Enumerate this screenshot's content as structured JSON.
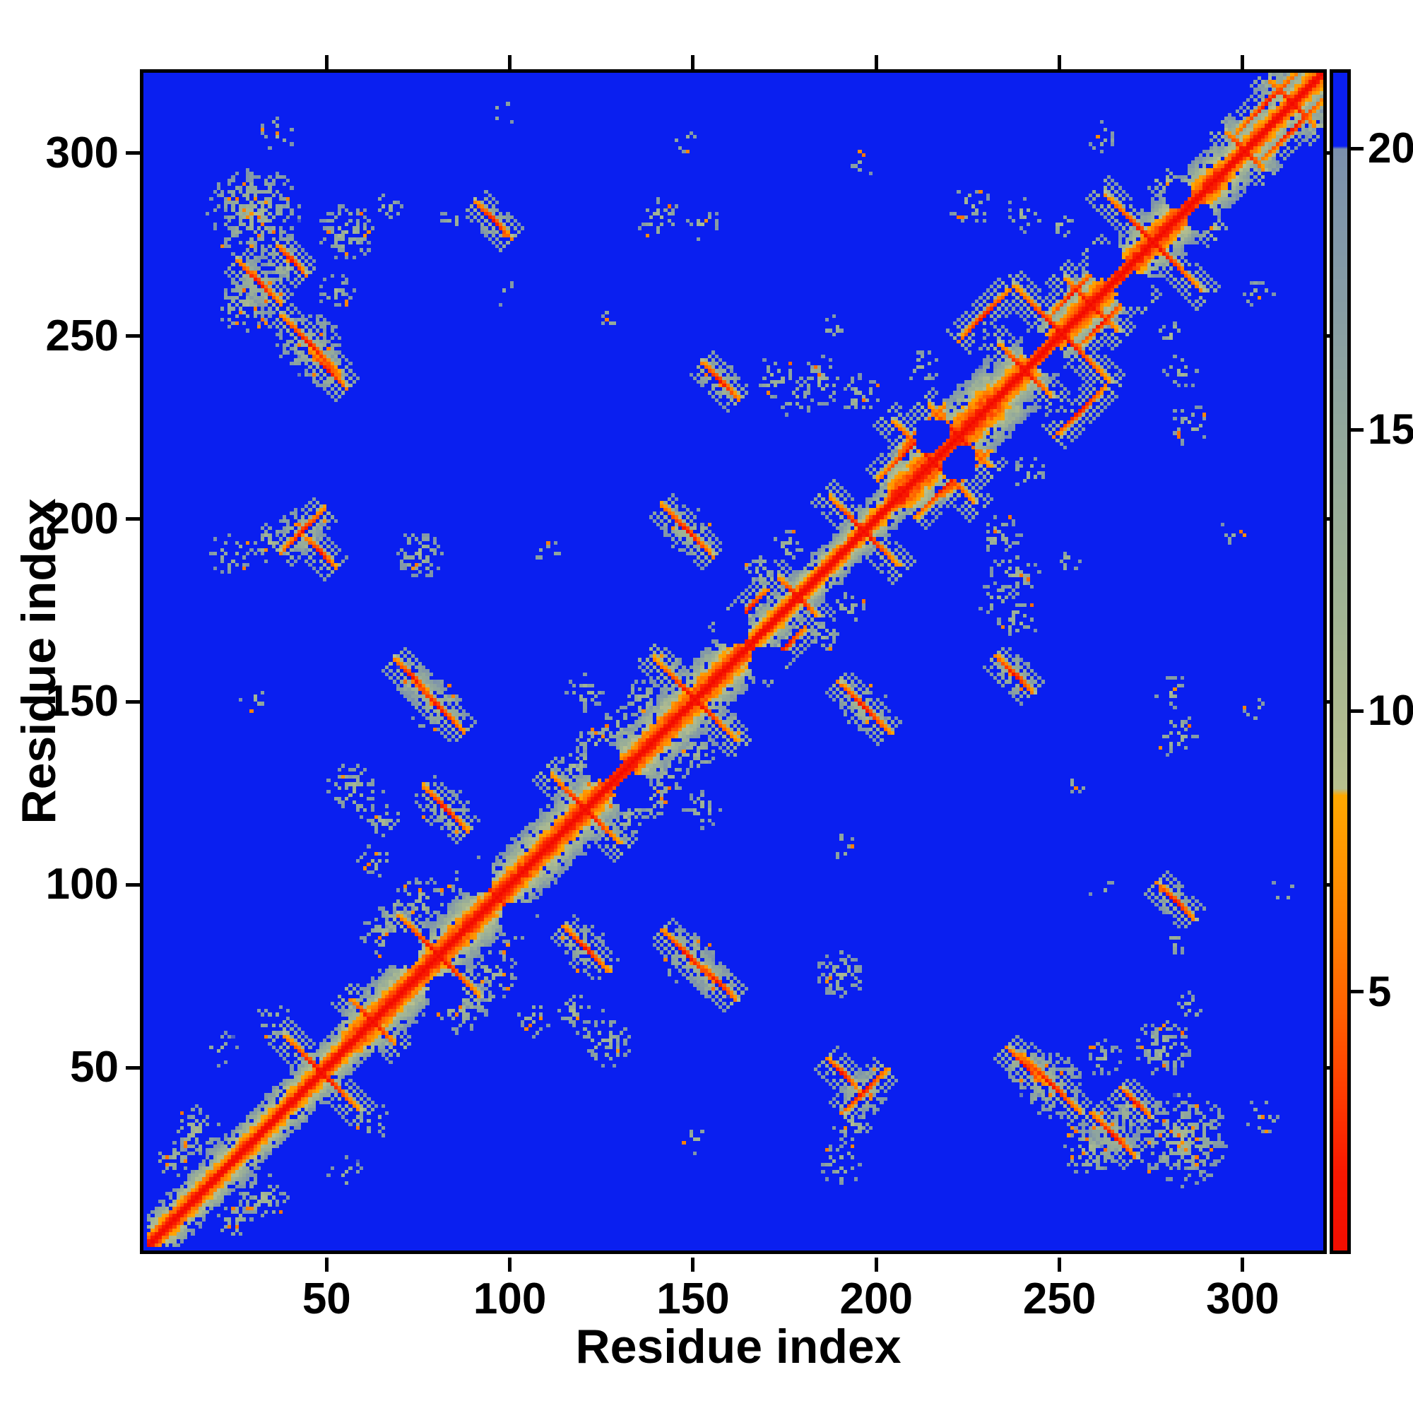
{
  "chart_data": {
    "type": "heatmap",
    "title": "",
    "xlabel": "Residue index",
    "ylabel": "Residue index",
    "x_range": [
      1,
      322
    ],
    "y_range": [
      1,
      322
    ],
    "x_ticks": [
      50,
      100,
      150,
      200,
      250,
      300
    ],
    "y_ticks": [
      50,
      100,
      150,
      200,
      250,
      300
    ],
    "grid": false,
    "n": 322,
    "seed": 42,
    "background_color": "#0a1ff0",
    "palette_stops": [
      [
        0,
        "#f20a00"
      ],
      [
        1.8,
        "#f81800"
      ],
      [
        3.2,
        "#ff3c00"
      ],
      [
        4.6,
        "#ff5f00"
      ],
      [
        6,
        "#ff7e00"
      ],
      [
        7.2,
        "#ff9300"
      ],
      [
        8.5,
        "#ffa800"
      ],
      [
        8.62,
        "#b8c08e"
      ],
      [
        12,
        "#a0b394"
      ],
      [
        15,
        "#92a89c"
      ],
      [
        18,
        "#8399a7"
      ],
      [
        20,
        "#7b90ad"
      ],
      [
        20.05,
        "#0a1ff0"
      ],
      [
        40,
        "#0a1ff0"
      ]
    ],
    "colorbar": {
      "orientation": "vertical",
      "position": "right",
      "ticks": [
        5,
        10,
        15,
        20
      ],
      "vmin": 0.4,
      "vmax": 21.35
    },
    "description": "Symmetric residue-residue distance map: red = short distance (main diagonal), orange = close contacts, gray-green = intermediate, blue = beyond ~20.",
    "features": {
      "bands": [
        [
          1,
          54,
          7
        ],
        [
          54,
          102,
          9
        ],
        [
          102,
          162,
          9
        ],
        [
          162,
          203,
          6
        ],
        [
          203,
          230,
          11
        ],
        [
          230,
          252,
          8
        ],
        [
          252,
          292,
          9
        ],
        [
          292,
          321,
          7
        ]
      ],
      "crosses": [
        [
          48,
          10
        ],
        [
          62,
          6
        ],
        [
          80,
          11
        ],
        [
          96,
          6
        ],
        [
          120,
          9
        ],
        [
          128,
          5
        ],
        [
          150,
          11
        ],
        [
          165,
          6
        ],
        [
          178,
          5
        ],
        [
          196,
          9
        ],
        [
          215,
          11
        ],
        [
          222,
          8
        ],
        [
          240,
          7
        ],
        [
          250,
          13
        ],
        [
          258,
          7
        ],
        [
          266,
          6
        ],
        [
          275,
          13
        ],
        [
          285,
          6
        ],
        [
          300,
          5
        ],
        [
          313,
          6
        ]
      ],
      "antis": [
        [
          31,
          264,
          6
        ],
        [
          45,
          247,
          8
        ],
        [
          80,
          148,
          7
        ],
        [
          82,
          120,
          6
        ],
        [
          73,
          156,
          5
        ],
        [
          148,
          196,
          7
        ],
        [
          157,
          237,
          5
        ],
        [
          50,
          240,
          5
        ],
        [
          40,
          270,
          4
        ],
        [
          95,
          281,
          5
        ],
        [
          48,
          190,
          4
        ]
      ],
      "paras": [
        [
          209,
          219,
          9
        ],
        [
          212,
          224,
          6
        ],
        [
          306,
          313,
          8
        ],
        [
          253,
          261,
          6
        ],
        [
          43,
          196,
          6
        ],
        [
          229,
          255,
          7
        ],
        [
          165,
          175,
          5
        ]
      ],
      "blobs": [
        [
          30,
          283,
          13,
          0.7
        ],
        [
          55,
          278,
          8,
          0.55
        ],
        [
          27,
          258,
          8,
          0.6
        ],
        [
          45,
          247,
          9,
          0.65
        ],
        [
          31,
          264,
          7,
          0.6
        ],
        [
          50,
          240,
          6,
          0.55
        ],
        [
          38,
          268,
          6,
          0.5
        ],
        [
          52,
          262,
          5,
          0.45
        ],
        [
          66,
          285,
          4,
          0.4
        ],
        [
          84,
          281,
          4,
          0.35
        ],
        [
          140,
          282,
          6,
          0.4
        ],
        [
          152,
          280,
          5,
          0.35
        ],
        [
          128,
          255,
          4,
          0.3
        ],
        [
          97,
          262,
          4,
          0.3
        ],
        [
          95,
          281,
          5,
          0.35
        ],
        [
          23,
          190,
          6,
          0.45
        ],
        [
          34,
          193,
          6,
          0.55
        ],
        [
          43,
          196,
          7,
          0.6
        ],
        [
          75,
          190,
          7,
          0.55
        ],
        [
          110,
          190,
          4,
          0.3
        ],
        [
          80,
          148,
          8,
          0.6
        ],
        [
          82,
          120,
          7,
          0.55
        ],
        [
          57,
          125,
          8,
          0.55
        ],
        [
          65,
          117,
          5,
          0.45
        ],
        [
          30,
          150,
          4,
          0.25
        ],
        [
          73,
          156,
          5,
          0.45
        ],
        [
          124,
          138,
          7,
          0.5
        ],
        [
          136,
          150,
          6,
          0.45
        ],
        [
          148,
          196,
          7,
          0.55
        ],
        [
          157,
          237,
          6,
          0.5
        ],
        [
          172,
          238,
          6,
          0.45
        ],
        [
          185,
          237,
          7,
          0.5
        ],
        [
          195,
          233,
          6,
          0.45
        ],
        [
          178,
          232,
          5,
          0.4
        ],
        [
          188,
          252,
          4,
          0.3
        ],
        [
          212,
          241,
          5,
          0.35
        ],
        [
          225,
          285,
          6,
          0.4
        ],
        [
          240,
          283,
          5,
          0.35
        ],
        [
          250,
          280,
          4,
          0.3
        ],
        [
          147,
          303,
          4,
          0.3
        ],
        [
          97,
          310,
          4,
          0.25
        ],
        [
          36,
          305,
          5,
          0.35
        ],
        [
          196,
          297,
          4,
          0.3
        ],
        [
          261,
          304,
          4,
          0.3
        ],
        [
          14,
          32,
          7,
          0.6
        ],
        [
          8,
          24,
          5,
          0.55
        ],
        [
          20,
          55,
          5,
          0.4
        ],
        [
          35,
          62,
          5,
          0.45
        ],
        [
          66,
          86,
          8,
          0.55
        ],
        [
          75,
          95,
          7,
          0.5
        ],
        [
          88,
          99,
          5,
          0.45
        ],
        [
          63,
          106,
          5,
          0.4
        ],
        [
          117,
          131,
          6,
          0.5
        ],
        [
          130,
          143,
          6,
          0.5
        ],
        [
          120,
          152,
          5,
          0.4
        ],
        [
          142,
          160,
          5,
          0.4
        ],
        [
          168,
          185,
          5,
          0.45
        ],
        [
          175,
          192,
          5,
          0.45
        ]
      ],
      "holes": [
        [
          70,
          82,
          5
        ],
        [
          125,
          133,
          5
        ],
        [
          215,
          222,
          5
        ],
        [
          243,
          247,
          4
        ],
        [
          262,
          270,
          5
        ],
        [
          282,
          288,
          4
        ],
        [
          160,
          170,
          5
        ],
        [
          90,
          102,
          5
        ]
      ]
    }
  }
}
